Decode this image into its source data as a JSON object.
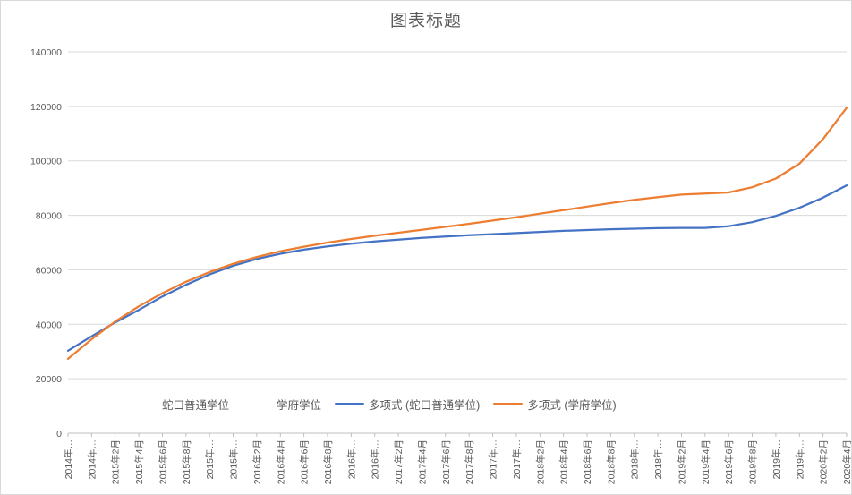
{
  "chart_data": {
    "type": "line",
    "title": "图表标题",
    "xlabel": "",
    "ylabel": "",
    "ylim": [
      0,
      140000
    ],
    "y_ticks": [
      0,
      20000,
      40000,
      60000,
      80000,
      100000,
      120000,
      140000
    ],
    "grid": "horizontal",
    "legend_position": "bottom",
    "gridline_color": "#d9d9d9",
    "axis_line_color": "#bfbfbf",
    "text_color": "#595959",
    "categories": [
      "2014年…",
      "2014年…",
      "2015年2月",
      "2015年4月",
      "2015年6月",
      "2015年8月",
      "2015年…",
      "2015年…",
      "2016年2月",
      "2016年4月",
      "2016年6月",
      "2016年8月",
      "2016年…",
      "2016年…",
      "2017年2月",
      "2017年4月",
      "2017年6月",
      "2017年8月",
      "2017年…",
      "2017年…",
      "2018年2月",
      "2018年4月",
      "2018年6月",
      "2018年8月",
      "2018年…",
      "2018年…",
      "2019年2月",
      "2019年4月",
      "2019年6月",
      "2019年8月",
      "2019年…",
      "2019年…",
      "2020年2月",
      "2020年4月"
    ],
    "series": [
      {
        "name": "多项式 (蛇口普通学位)",
        "color": "#4472c4",
        "values": [
          30300,
          35600,
          40700,
          45300,
          50200,
          54500,
          58300,
          61500,
          64000,
          65900,
          67400,
          68600,
          69600,
          70400,
          71100,
          71700,
          72200,
          72700,
          73100,
          73500,
          73900,
          74300,
          74600,
          74900,
          75100,
          75300,
          75400,
          75400,
          76000,
          77500,
          79800,
          82800,
          86500,
          91000
        ]
      },
      {
        "name": "多项式 (学府学位)",
        "color": "#ed7d31",
        "values": [
          27300,
          34500,
          41000,
          46600,
          51400,
          55600,
          59200,
          62200,
          64700,
          66800,
          68500,
          70000,
          71300,
          72500,
          73600,
          74700,
          75800,
          76900,
          78100,
          79300,
          80600,
          81900,
          83200,
          84500,
          85700,
          86700,
          87600,
          88000,
          88400,
          90300,
          93500,
          99000,
          108000,
          119500
        ]
      }
    ]
  },
  "legend": {
    "items": [
      {
        "label": "蛇口普通学位",
        "swatch": "none",
        "color": null
      },
      {
        "label": "学府学位",
        "swatch": "none",
        "color": null
      },
      {
        "label": "多项式 (蛇口普通学位)",
        "swatch": "line",
        "color": "#4472c4"
      },
      {
        "label": "多项式 (学府学位)",
        "swatch": "line",
        "color": "#ed7d31"
      }
    ]
  }
}
